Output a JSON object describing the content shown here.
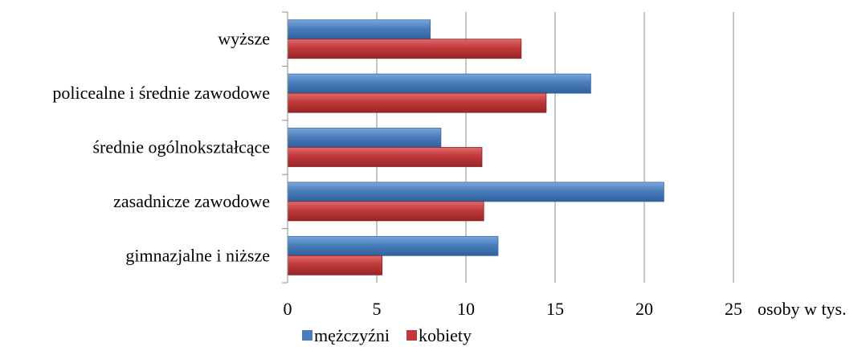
{
  "chart_data": {
    "type": "bar",
    "orientation": "horizontal",
    "categories": [
      "wyższe",
      "policealne i średnie zawodowe",
      "średnie ogólnokształcące",
      "zasadnicze zawodowe",
      "gimnazjalne i niższe"
    ],
    "series": [
      {
        "name": "mężczyźni",
        "color": "#4a7ebb",
        "values": [
          8.0,
          17.0,
          8.6,
          21.1,
          11.8
        ]
      },
      {
        "name": "kobiety",
        "color": "#c0393b",
        "values": [
          13.1,
          14.5,
          10.9,
          11.0,
          5.3
        ]
      }
    ],
    "xlim": [
      0,
      25
    ],
    "xticks": [
      "0",
      "5",
      "10",
      "15",
      "20",
      "25"
    ],
    "xlabel": "osoby w tys.",
    "ylabel": "",
    "title": "",
    "grid": "vertical",
    "legend_position": "bottom"
  }
}
